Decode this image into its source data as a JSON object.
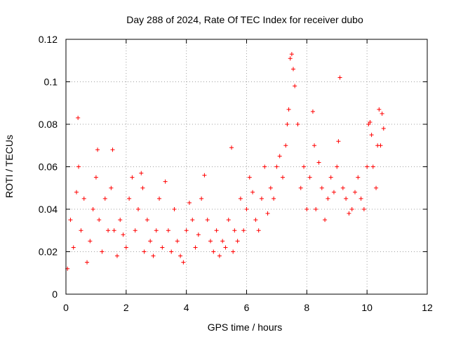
{
  "chart_data": {
    "type": "scatter",
    "title": "Day 288 of 2024, Rate Of TEC Index for receiver dubo",
    "xlabel": "GPS time / hours",
    "ylabel": "ROTI / TECUs",
    "xlim": [
      0,
      12
    ],
    "ylim": [
      0,
      0.12
    ],
    "x_ticks": [
      0,
      2,
      4,
      6,
      8,
      10,
      12
    ],
    "x_tick_labels": [
      "0",
      "2",
      "4",
      "6",
      "8",
      "10",
      "12"
    ],
    "y_ticks": [
      0,
      0.02,
      0.04,
      0.06,
      0.08,
      0.1,
      0.12
    ],
    "y_tick_labels": [
      "0",
      "0.02",
      "0.04",
      "0.06",
      "0.08",
      "0.1",
      "0.12"
    ],
    "grid": true,
    "marker": "plus",
    "series": [
      {
        "name": "ROTI",
        "color": "#ff0000",
        "x": [
          0.05,
          0.15,
          0.25,
          0.35,
          0.4,
          0.42,
          0.5,
          0.6,
          0.7,
          0.8,
          0.9,
          1.0,
          1.05,
          1.1,
          1.2,
          1.3,
          1.4,
          1.5,
          1.55,
          1.6,
          1.7,
          1.8,
          1.9,
          2.0,
          2.1,
          2.2,
          2.3,
          2.4,
          2.5,
          2.55,
          2.6,
          2.7,
          2.8,
          2.9,
          3.0,
          3.1,
          3.2,
          3.3,
          3.4,
          3.5,
          3.6,
          3.7,
          3.8,
          3.9,
          4.0,
          4.1,
          4.2,
          4.3,
          4.4,
          4.5,
          4.6,
          4.7,
          4.8,
          4.9,
          5.0,
          5.1,
          5.2,
          5.3,
          5.4,
          5.5,
          5.55,
          5.6,
          5.7,
          5.8,
          5.9,
          6.0,
          6.1,
          6.2,
          6.3,
          6.4,
          6.5,
          6.6,
          6.7,
          6.8,
          6.9,
          7.0,
          7.1,
          7.2,
          7.3,
          7.35,
          7.4,
          7.45,
          7.5,
          7.55,
          7.6,
          7.7,
          7.8,
          7.9,
          8.0,
          8.1,
          8.2,
          8.25,
          8.3,
          8.4,
          8.5,
          8.6,
          8.7,
          8.8,
          8.9,
          9.0,
          9.05,
          9.1,
          9.2,
          9.3,
          9.4,
          9.5,
          9.6,
          9.7,
          9.8,
          9.9,
          10.0,
          10.05,
          10.1,
          10.15,
          10.2,
          10.3,
          10.35,
          10.4,
          10.45,
          10.5,
          10.55
        ],
        "y": [
          0.012,
          0.035,
          0.022,
          0.048,
          0.083,
          0.06,
          0.03,
          0.045,
          0.015,
          0.025,
          0.04,
          0.055,
          0.068,
          0.035,
          0.02,
          0.045,
          0.03,
          0.05,
          0.068,
          0.03,
          0.018,
          0.035,
          0.028,
          0.022,
          0.045,
          0.055,
          0.03,
          0.04,
          0.057,
          0.05,
          0.02,
          0.035,
          0.025,
          0.018,
          0.03,
          0.045,
          0.022,
          0.053,
          0.03,
          0.02,
          0.04,
          0.025,
          0.018,
          0.015,
          0.03,
          0.043,
          0.035,
          0.022,
          0.028,
          0.045,
          0.056,
          0.035,
          0.025,
          0.02,
          0.03,
          0.018,
          0.025,
          0.022,
          0.035,
          0.069,
          0.02,
          0.03,
          0.025,
          0.045,
          0.03,
          0.04,
          0.055,
          0.048,
          0.035,
          0.03,
          0.045,
          0.06,
          0.038,
          0.05,
          0.045,
          0.06,
          0.065,
          0.055,
          0.07,
          0.08,
          0.087,
          0.111,
          0.113,
          0.106,
          0.098,
          0.08,
          0.05,
          0.06,
          0.04,
          0.055,
          0.086,
          0.07,
          0.04,
          0.062,
          0.05,
          0.035,
          0.045,
          0.055,
          0.048,
          0.06,
          0.072,
          0.102,
          0.05,
          0.045,
          0.038,
          0.04,
          0.048,
          0.055,
          0.045,
          0.04,
          0.06,
          0.08,
          0.081,
          0.075,
          0.06,
          0.05,
          0.07,
          0.087,
          0.07,
          0.085,
          0.078
        ]
      }
    ]
  }
}
